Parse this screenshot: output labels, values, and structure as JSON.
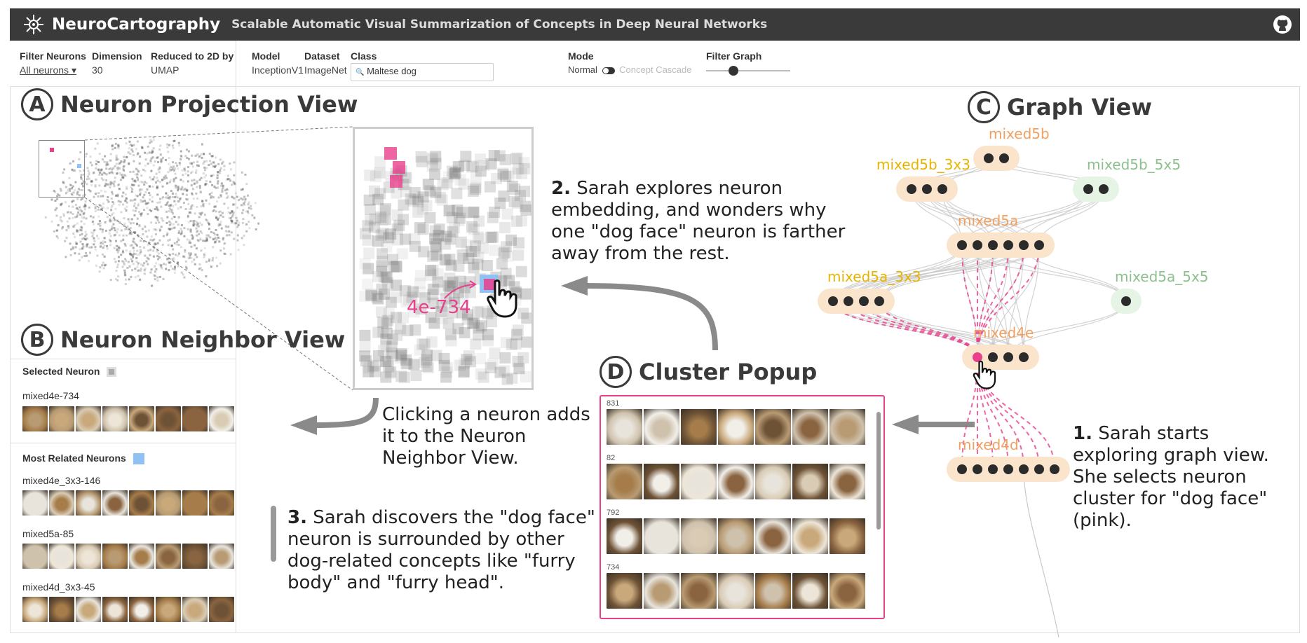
{
  "header": {
    "app_name": "NeuroCartography",
    "subtitle": "Scalable Automatic Visual Summarization of Concepts in Deep Neural Networks"
  },
  "controls": {
    "filter_neurons_label": "Filter Neurons",
    "filter_neurons_value": "All neurons",
    "dimension_label": "Dimension",
    "dimension_value": "30",
    "reduced_label": "Reduced to 2D by",
    "reduced_value": "UMAP",
    "model_label": "Model",
    "model_value": "InceptionV1",
    "dataset_label": "Dataset",
    "dataset_value": "ImageNet",
    "class_label": "Class",
    "class_value": "Maltese dog",
    "mode_label": "Mode",
    "mode_normal": "Normal",
    "mode_cascade": "Concept Cascade",
    "filter_graph_label": "Filter Graph",
    "filter_graph_level": 0.25
  },
  "sections": {
    "a_badge": "A",
    "a_title": "Neuron Projection View",
    "b_badge": "B",
    "b_title": "Neuron Neighbor View",
    "c_badge": "C",
    "c_title": "Graph View",
    "d_badge": "D",
    "d_title": "Cluster Popup"
  },
  "neighbor": {
    "selected_label": "Selected Neuron",
    "selected_name": "mixed4e-734",
    "related_label": "Most Related Neurons",
    "related": [
      {
        "name": "mixed4e_3x3-146"
      },
      {
        "name": "mixed5a-85"
      },
      {
        "name": "mixed4d_3x3-45"
      }
    ]
  },
  "projection": {
    "zoom_neuron_label": "4e-734"
  },
  "graph": {
    "layers": [
      {
        "name": "mixed5b",
        "color": "#f0a060"
      },
      {
        "name": "mixed5b_3x3",
        "color": "#e6b400"
      },
      {
        "name": "mixed5b_5x5",
        "color": "#8cc08c"
      },
      {
        "name": "mixed5a",
        "color": "#f0a060"
      },
      {
        "name": "mixed5a_3x3",
        "color": "#e6b400"
      },
      {
        "name": "mixed5a_5x5",
        "color": "#8cc08c"
      },
      {
        "name": "mixed4e",
        "color": "#f0a060"
      },
      {
        "name": "mixed4d",
        "color": "#f0a060"
      }
    ]
  },
  "popup": {
    "clusters": [
      "831",
      "82",
      "792",
      "734"
    ]
  },
  "annotations": {
    "step1_num": "1.",
    "step1_text": "Sarah starts exploring graph view. She selects neuron cluster for \"dog face\" (pink).",
    "step2_num": "2.",
    "step2_text": "Sarah explores neuron embedding, and wonders why one \"dog face\" neuron is farther away from the rest.",
    "step3_num": "3.",
    "step3_text": "Sarah discovers the \"dog face\" neuron  is surrounded by other dog-related concepts like \"furry body\" and \"furry head\".",
    "click_text": "Clicking a neuron adds it to the Neuron Neighbor View."
  },
  "colors": {
    "pink": "#e8408c",
    "blue": "#8fc1f2",
    "header_bg": "#3a3a3a",
    "arrow_gray": "#8a8a8a"
  }
}
